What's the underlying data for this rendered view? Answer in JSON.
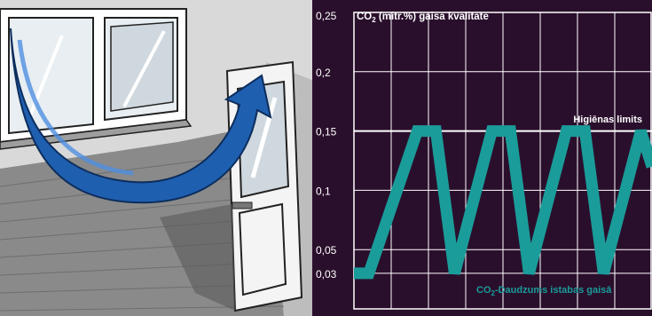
{
  "chart_data": {
    "type": "line",
    "title": "CO2 (mitr.%) gaisa kvalitāte",
    "title_parts": {
      "main": "CO",
      "sub": "2",
      "rest": " (mitr.%) gaisa kvalitāte"
    },
    "ylim": [
      0,
      0.25
    ],
    "y_ticks": [
      "0,25",
      "0,2",
      "0,15",
      "0,1",
      "0,05",
      "0,03"
    ],
    "y_tick_values": [
      0.25,
      0.2,
      0.15,
      0.1,
      0.05,
      0.03
    ],
    "limit_label": "Higiēnas limits",
    "limit_value": 0.15,
    "series_label_parts": {
      "main": "CO",
      "sub": "2",
      "rest": "-Daudzums istabas gaisā"
    },
    "series": [
      {
        "name": "CO2-Daudzums istabas gaisā",
        "x": [
          0,
          4,
          17,
          22,
          27,
          37,
          42,
          47,
          57,
          62,
          67,
          77,
          80
        ],
        "y": [
          0.03,
          0.03,
          0.15,
          0.15,
          0.03,
          0.15,
          0.15,
          0.03,
          0.15,
          0.15,
          0.03,
          0.15,
          0.12
        ]
      }
    ],
    "xlim": [
      0,
      80
    ],
    "grid": true,
    "colors": {
      "background": "#2a0f2c",
      "series": "#1a9c9a",
      "grid": "#ffffff"
    }
  }
}
